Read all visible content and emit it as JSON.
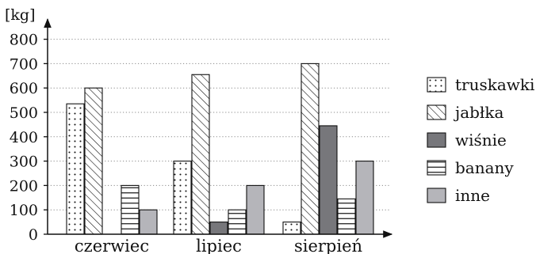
{
  "chart_data": {
    "type": "bar",
    "ylabel": "[kg]",
    "ylim": [
      0,
      850
    ],
    "yticks": [
      0,
      100,
      200,
      300,
      400,
      500,
      600,
      700,
      800
    ],
    "grid": true,
    "legend_position": "right",
    "categories": [
      "czerwiec",
      "lipiec",
      "sierpień"
    ],
    "series": [
      {
        "name": "truskawki",
        "pattern": "dots",
        "color": "#ffffff",
        "values": [
          535,
          300,
          50
        ]
      },
      {
        "name": "jabłka",
        "pattern": "diagonal-hatch",
        "color": "#ffffff",
        "values": [
          600,
          655,
          700
        ]
      },
      {
        "name": "wiśnie",
        "pattern": "solid",
        "color": "#77777b",
        "values": [
          0,
          50,
          445
        ]
      },
      {
        "name": "banany",
        "pattern": "horizontal-lines",
        "color": "#ffffff",
        "values": [
          200,
          100,
          145
        ]
      },
      {
        "name": "inne",
        "pattern": "solid",
        "color": "#b5b5ba",
        "values": [
          100,
          200,
          300
        ]
      }
    ]
  }
}
